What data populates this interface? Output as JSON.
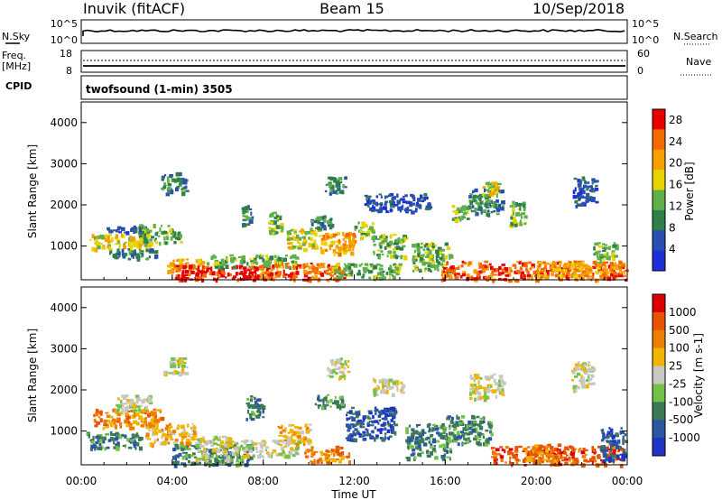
{
  "header": {
    "station": "Inuvik (fitACF)",
    "beam": "Beam 15",
    "date": "10/Sep/2018"
  },
  "colors": {
    "power": [
      "#1f2fd8",
      "#2a4fb0",
      "#2f7f4a",
      "#5fb04a",
      "#e8d200",
      "#f7a000",
      "#f36a00",
      "#e80000"
    ],
    "velocity": [
      "#2033c4",
      "#2a56a3",
      "#3c7a57",
      "#73c04a",
      "#c8c8c3",
      "#f1b500",
      "#ee7e00",
      "#e85200",
      "#dd0000"
    ],
    "frame": "#000000"
  },
  "top_panels": {
    "nsky": {
      "label": "N.Sky",
      "left_ticks": [
        "10^5",
        "10^0"
      ],
      "right_ticks": [
        "10^5",
        "10^0"
      ],
      "right_label": "N.Search"
    },
    "freq": {
      "label_line1": "Freq.",
      "label_line2": "[MHz]",
      "left_ticks": [
        "18",
        "8"
      ],
      "right_ticks": [
        "60",
        "0"
      ],
      "right_label": "Nave"
    },
    "cpid": {
      "label": "CPID",
      "program": "twofsound (1-min) 3505"
    }
  },
  "chart_data": [
    {
      "type": "heatmap",
      "name": "Power",
      "ylabel": "Slant Range [km]",
      "yticks": [
        1000,
        2000,
        3000,
        4000
      ],
      "ylim": [
        180,
        4500
      ],
      "colorbar_label": "Power [dB]",
      "colorbar_ticks": [
        4,
        8,
        12,
        16,
        20,
        24,
        28
      ],
      "colorbar_range": [
        0,
        30
      ],
      "blobs": [
        {
          "t": [
            0.3,
            3.0
          ],
          "r": [
            950,
            1300
          ],
          "level": 4
        },
        {
          "t": [
            1.0,
            2.8
          ],
          "r": [
            1350,
            1500
          ],
          "level": 1
        },
        {
          "t": [
            1.2,
            3.3
          ],
          "r": [
            700,
            950
          ],
          "level": 2
        },
        {
          "t": [
            2.5,
            4.4
          ],
          "r": [
            1100,
            1550
          ],
          "level": 3
        },
        {
          "t": [
            3.5,
            4.6
          ],
          "r": [
            2300,
            2800
          ],
          "level": 2
        },
        {
          "t": [
            3.7,
            5.4
          ],
          "r": [
            380,
            700
          ],
          "level": 5
        },
        {
          "t": [
            4.1,
            8.2
          ],
          "r": [
            200,
            560
          ],
          "level": 7
        },
        {
          "t": [
            5.5,
            9.5
          ],
          "r": [
            500,
            800
          ],
          "level": 3
        },
        {
          "t": [
            7.0,
            7.5
          ],
          "r": [
            1500,
            2000
          ],
          "level": 2
        },
        {
          "t": [
            8.2,
            8.8
          ],
          "r": [
            1300,
            1850
          ],
          "level": 3
        },
        {
          "t": [
            7.8,
            11.5
          ],
          "r": [
            200,
            600
          ],
          "level": 6
        },
        {
          "t": [
            9.0,
            10.5
          ],
          "r": [
            950,
            1450
          ],
          "level": 4
        },
        {
          "t": [
            10.0,
            11.0
          ],
          "r": [
            1450,
            1750
          ],
          "level": 2
        },
        {
          "t": [
            10.5,
            12.0
          ],
          "r": [
            800,
            1350
          ],
          "level": 5
        },
        {
          "t": [
            10.7,
            11.6
          ],
          "r": [
            2300,
            2700
          ],
          "level": 2
        },
        {
          "t": [
            11.0,
            14.0
          ],
          "r": [
            250,
            600
          ],
          "level": 3
        },
        {
          "t": [
            12.0,
            12.8
          ],
          "r": [
            1200,
            1600
          ],
          "level": 3
        },
        {
          "t": [
            12.8,
            14.2
          ],
          "r": [
            750,
            1300
          ],
          "level": 3
        },
        {
          "t": [
            12.4,
            15.3
          ],
          "r": [
            1850,
            2300
          ],
          "level": 1
        },
        {
          "t": [
            14.5,
            16.2
          ],
          "r": [
            400,
            1100
          ],
          "level": 3
        },
        {
          "t": [
            15.8,
            23.9
          ],
          "r": [
            200,
            650
          ],
          "level": 6
        },
        {
          "t": [
            16.2,
            17.0
          ],
          "r": [
            1650,
            2000
          ],
          "level": 3
        },
        {
          "t": [
            17.0,
            18.5
          ],
          "r": [
            1800,
            2400
          ],
          "level": 2
        },
        {
          "t": [
            17.6,
            18.3
          ],
          "r": [
            2250,
            2600
          ],
          "level": 4
        },
        {
          "t": [
            18.8,
            19.5
          ],
          "r": [
            1500,
            2100
          ],
          "level": 3
        },
        {
          "t": [
            21.6,
            22.6
          ],
          "r": [
            2000,
            2700
          ],
          "level": 1
        },
        {
          "t": [
            22.5,
            23.5
          ],
          "r": [
            600,
            1100
          ],
          "level": 3
        },
        {
          "t": [
            20.0,
            23.5
          ],
          "r": [
            300,
            650
          ],
          "level": 5
        }
      ]
    },
    {
      "type": "heatmap",
      "name": "Velocity",
      "ylabel": "Slant Range [km]",
      "yticks": [
        1000,
        2000,
        3000,
        4000
      ],
      "ylim": [
        180,
        4500
      ],
      "colorbar_label": "Velocity [m s-1]",
      "colorbar_ticks": [
        1000,
        500,
        100,
        25,
        -25,
        -100,
        -500,
        -1000
      ],
      "blobs": [
        {
          "t": [
            0.2,
            2.6
          ],
          "r": [
            600,
            1000
          ],
          "level": 2
        },
        {
          "t": [
            0.5,
            3.5
          ],
          "r": [
            1100,
            1550
          ],
          "level": 6
        },
        {
          "t": [
            1.5,
            3.0
          ],
          "r": [
            1500,
            1900
          ],
          "level": 4
        },
        {
          "t": [
            2.8,
            5.0
          ],
          "r": [
            700,
            1200
          ],
          "level": 5
        },
        {
          "t": [
            3.6,
            4.6
          ],
          "r": [
            2400,
            2800
          ],
          "level": 4
        },
        {
          "t": [
            4.0,
            7.5
          ],
          "r": [
            200,
            700
          ],
          "level": 2
        },
        {
          "t": [
            5.0,
            6.5
          ],
          "r": [
            300,
            900
          ],
          "level": 4
        },
        {
          "t": [
            6.5,
            9.5
          ],
          "r": [
            400,
            800
          ],
          "level": 4
        },
        {
          "t": [
            7.2,
            8.0
          ],
          "r": [
            1300,
            1900
          ],
          "level": 2
        },
        {
          "t": [
            8.6,
            10.0
          ],
          "r": [
            700,
            1200
          ],
          "level": 5
        },
        {
          "t": [
            9.8,
            11.8
          ],
          "r": [
            250,
            650
          ],
          "level": 6
        },
        {
          "t": [
            10.2,
            11.5
          ],
          "r": [
            1600,
            1900
          ],
          "level": 2
        },
        {
          "t": [
            10.8,
            11.7
          ],
          "r": [
            2300,
            2800
          ],
          "level": 4
        },
        {
          "t": [
            11.6,
            13.8
          ],
          "r": [
            800,
            1600
          ],
          "level": 1
        },
        {
          "t": [
            12.8,
            14.1
          ],
          "r": [
            1900,
            2300
          ],
          "level": 4
        },
        {
          "t": [
            14.2,
            16.2
          ],
          "r": [
            350,
            1200
          ],
          "level": 2
        },
        {
          "t": [
            16.0,
            18.0
          ],
          "r": [
            700,
            1400
          ],
          "level": 2
        },
        {
          "t": [
            17.0,
            18.5
          ],
          "r": [
            1800,
            2400
          ],
          "level": 4
        },
        {
          "t": [
            18.0,
            23.8
          ],
          "r": [
            200,
            650
          ],
          "level": 7
        },
        {
          "t": [
            19.5,
            21.0
          ],
          "r": [
            250,
            700
          ],
          "level": 6
        },
        {
          "t": [
            21.5,
            22.5
          ],
          "r": [
            2000,
            2700
          ],
          "level": 4
        },
        {
          "t": [
            22.8,
            23.9
          ],
          "r": [
            300,
            1100
          ],
          "level": 1
        }
      ]
    }
  ],
  "xaxis": {
    "ticks": [
      "00:00",
      "04:00",
      "08:00",
      "12:00",
      "16:00",
      "20:00",
      "00:00"
    ],
    "label": "Time UT"
  }
}
